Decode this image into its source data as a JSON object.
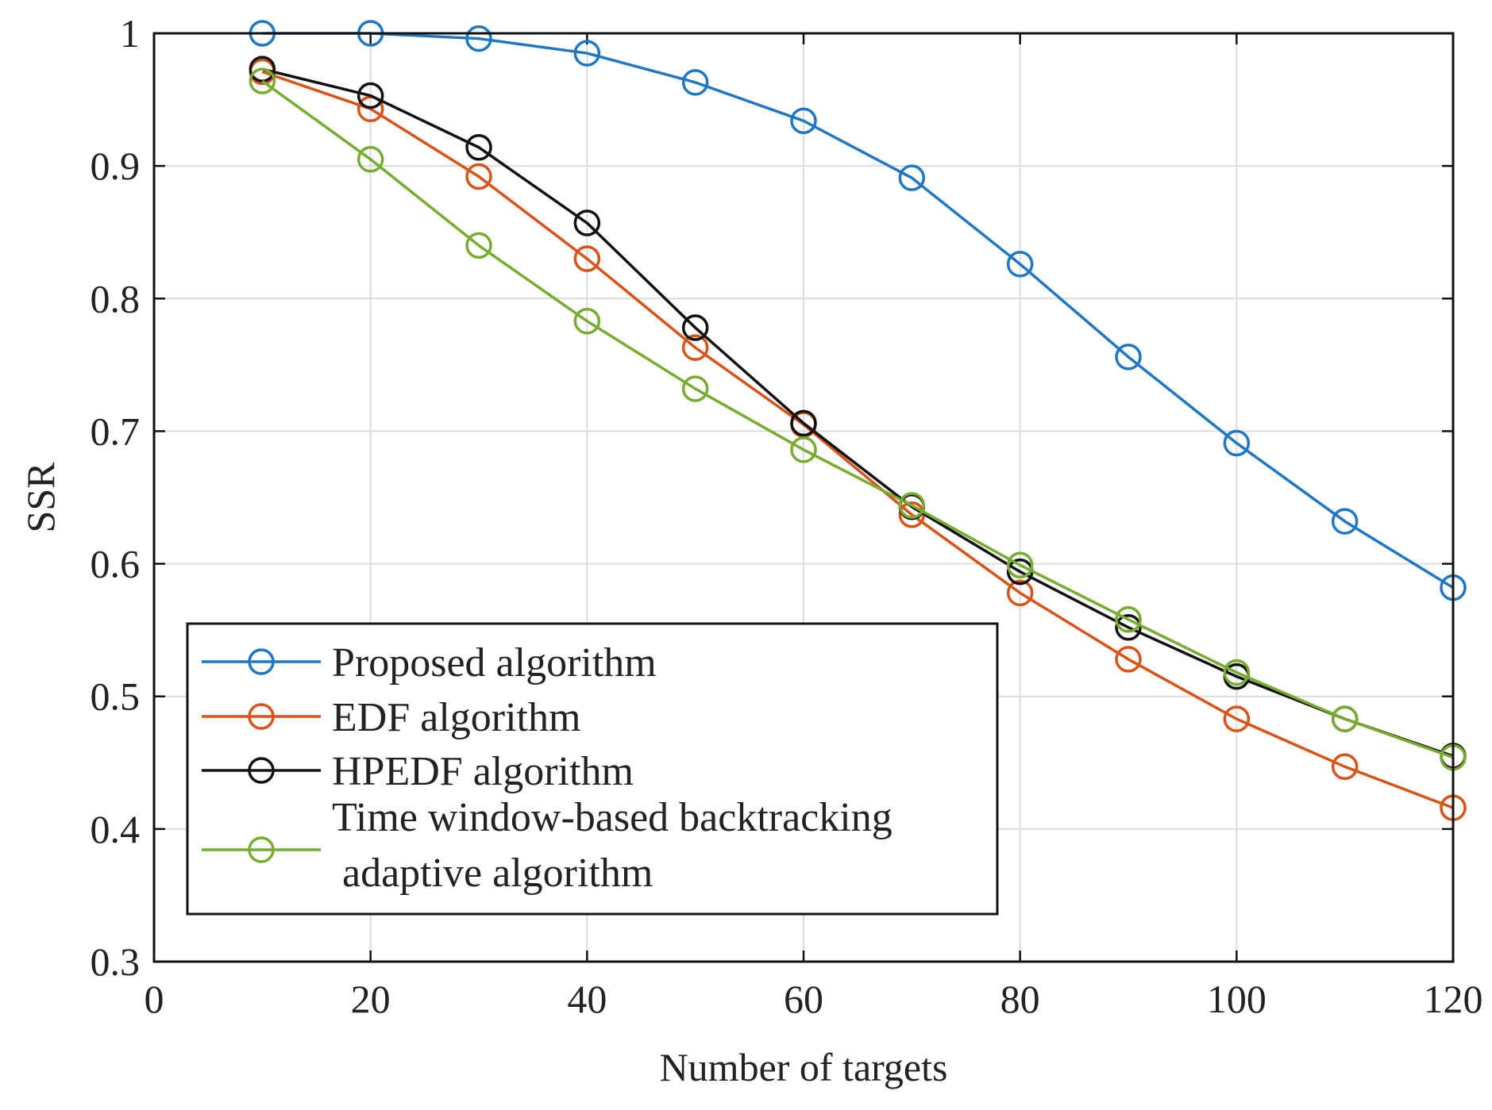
{
  "chart_data": {
    "type": "line",
    "title": "",
    "xlabel": "Number of targets",
    "ylabel": "SSR",
    "xlim": [
      0,
      120
    ],
    "ylim": [
      0.3,
      1.0
    ],
    "xticks": [
      0,
      20,
      40,
      60,
      80,
      100,
      120
    ],
    "yticks": [
      0.3,
      0.4,
      0.5,
      0.6,
      0.7,
      0.8,
      0.9,
      1.0
    ],
    "xtick_labels": [
      "0",
      "20",
      "40",
      "60",
      "80",
      "100",
      "120"
    ],
    "ytick_labels": [
      "0.3",
      "0.4",
      "0.5",
      "0.6",
      "0.7",
      "0.8",
      "0.9",
      "1"
    ],
    "grid": true,
    "legend_position": "lower-left",
    "marker": "open-circle",
    "x": [
      10,
      20,
      30,
      40,
      50,
      60,
      70,
      80,
      90,
      100,
      110,
      120
    ],
    "series": [
      {
        "name": "Proposed algorithm",
        "color": "#1f77c4",
        "values": [
          1.0,
          1.0,
          0.996,
          0.985,
          0.963,
          0.934,
          0.891,
          0.826,
          0.756,
          0.691,
          0.632,
          0.582
        ]
      },
      {
        "name": "EDF algorithm",
        "color": "#d95319",
        "values": [
          0.971,
          0.943,
          0.892,
          0.83,
          0.763,
          0.705,
          0.637,
          0.578,
          0.528,
          0.483,
          0.447,
          0.416
        ]
      },
      {
        "name": "HPEDF algorithm",
        "color": "#111111",
        "values": [
          0.973,
          0.953,
          0.914,
          0.857,
          0.778,
          0.706,
          0.643,
          0.594,
          0.552,
          0.515,
          0.483,
          0.455
        ]
      },
      {
        "name": "Time window-based backtracking adaptive algorithm",
        "legend_lines": [
          "Time window-based backtracking",
          " adaptive algorithm"
        ],
        "color": "#77ac30",
        "values": [
          0.964,
          0.905,
          0.84,
          0.783,
          0.732,
          0.686,
          0.644,
          0.599,
          0.558,
          0.518,
          0.483,
          0.454
        ]
      }
    ]
  }
}
